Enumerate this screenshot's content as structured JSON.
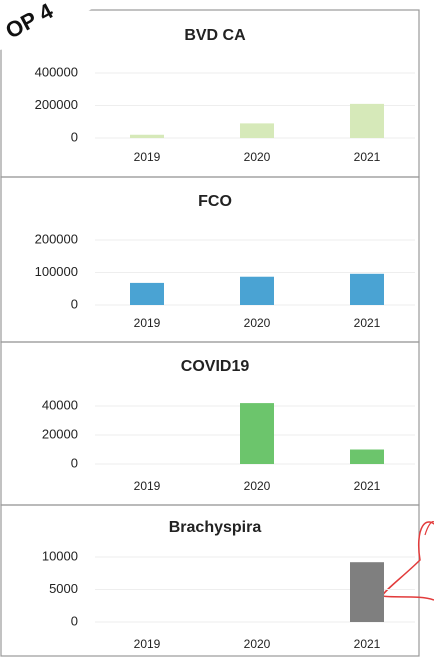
{
  "banner": "OP 4",
  "chart_data": [
    {
      "type": "bar",
      "title": "BVD CA",
      "categories": [
        "2019",
        "2020",
        "2021"
      ],
      "values": [
        20000,
        90000,
        210000
      ],
      "color": "#d6e9b9",
      "ylim": [
        0,
        400000
      ],
      "yticks": [
        0,
        200000,
        400000
      ],
      "grid": true
    },
    {
      "type": "bar",
      "title": "FCO",
      "categories": [
        "2019",
        "2020",
        "2021"
      ],
      "values": [
        68000,
        87000,
        96000
      ],
      "color": "#4aa3d3",
      "ylim": [
        0,
        200000
      ],
      "yticks": [
        0,
        100000,
        200000
      ],
      "grid": true
    },
    {
      "type": "bar",
      "title": "COVID19",
      "categories": [
        "2019",
        "2020",
        "2021"
      ],
      "values": [
        0,
        42000,
        10000
      ],
      "color": "#6cc56c",
      "ylim": [
        0,
        40000
      ],
      "yticks": [
        0,
        20000,
        40000
      ],
      "grid": true
    },
    {
      "type": "bar",
      "title": "Brachyspira",
      "categories": [
        "2019",
        "2020",
        "2021"
      ],
      "values": [
        0,
        0,
        9200
      ],
      "color": "#7f7f7f",
      "ylim": [
        0,
        10000
      ],
      "yticks": [
        0,
        5000,
        10000
      ],
      "grid": true
    }
  ]
}
